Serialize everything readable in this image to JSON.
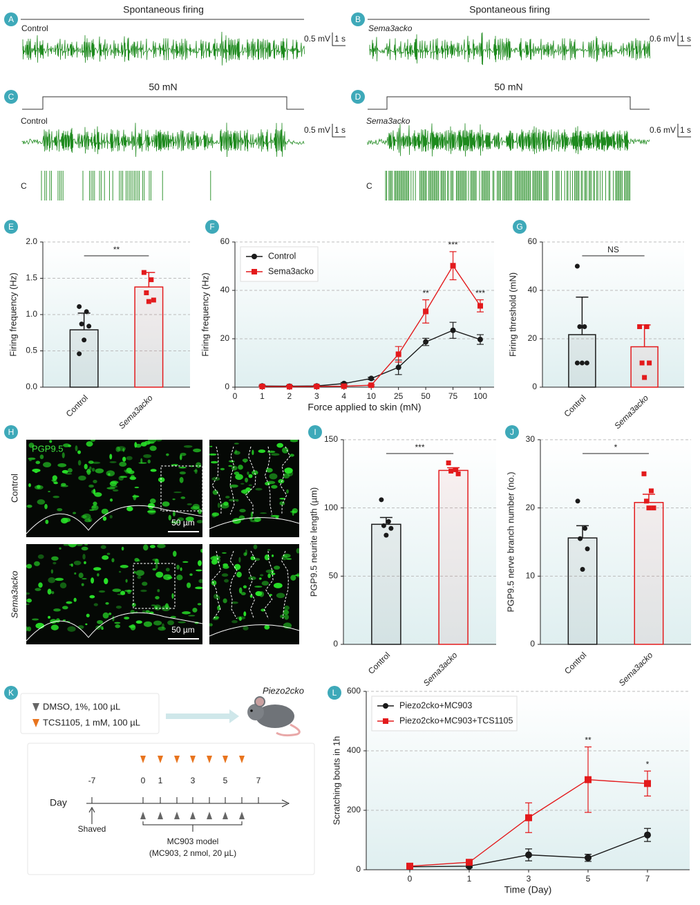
{
  "panel_labels": [
    "A",
    "B",
    "C",
    "D",
    "E",
    "F",
    "G",
    "H",
    "I",
    "J",
    "K",
    "L"
  ],
  "traces": [
    {
      "title": "Spontaneous firing",
      "label": "Control",
      "voltage": "0.5 mV",
      "time": "1 s"
    },
    {
      "title": "Spontaneous firing",
      "label": "Sema3acko",
      "voltage": "0.6 mV",
      "time": "1 s"
    },
    {
      "title": "50 mN",
      "label": "Control",
      "voltage": "0.5 mV",
      "time": "1 s",
      "raster": "C"
    },
    {
      "title": "50 mN",
      "label": "Sema3acko",
      "voltage": "0.6 mV",
      "time": "1 s",
      "raster": "C"
    }
  ],
  "images": {
    "stain": "PGP9.5",
    "rows": [
      "Control",
      "Sema3acko"
    ],
    "scale_bar": "50 µm"
  },
  "schematic": {
    "treatments": [
      "DMSO, 1%, 100 µL",
      "TCS1105, 1 mM, 100 µL"
    ],
    "mouse": "Piezo2cko",
    "axis_label": "Day",
    "days": [
      "-7",
      "0",
      "1",
      "3",
      "5",
      "7"
    ],
    "shaved": "Shaved",
    "model": "MC903 model",
    "model_detail": "(MC903, 2 nmol, 20 µL)"
  },
  "chart_data": [
    {
      "type": "bar",
      "categories": [
        "Control",
        "Sema3acko"
      ],
      "values": [
        0.79,
        1.38
      ],
      "errors": [
        0.23,
        0.2
      ],
      "points": [
        [
          1.11,
          1.04,
          0.87,
          0.84,
          0.65,
          0.46
        ],
        [
          1.58,
          1.48,
          1.3,
          1.2,
          1.18
        ]
      ],
      "colors": [
        "#1a1a1a",
        "#e31a1c"
      ],
      "markers": [
        "circle",
        "square"
      ],
      "ylabel": "Firing frequency (Hz)",
      "ylim": [
        0,
        2
      ],
      "yticks": [
        {
          "value": 0,
          "label": "0.0"
        },
        0.5,
        {
          "value": 1,
          "label": "1.0"
        },
        1.5,
        {
          "value": 2,
          "label": "2.0"
        }
      ],
      "significance": "**",
      "grid": true
    },
    {
      "type": "line",
      "categories": [
        "0",
        "1",
        "2",
        "3",
        "4",
        "10",
        "25",
        "50",
        "75",
        "100"
      ],
      "xlabel": "Force applied to skin (mN)",
      "ylabel": "Firing frequency (Hz)",
      "ylim": [
        0,
        60
      ],
      "yticks": [
        0,
        20,
        40,
        60
      ],
      "grid": true,
      "legend": "upper left",
      "series": [
        {
          "name": "Control",
          "color": "#1a1a1a",
          "marker": "circle",
          "values": [
            null,
            0.5,
            0.4,
            0.5,
            1.5,
            3.6,
            8.2,
            18.7,
            23.5,
            19.7
          ],
          "errors": [
            null,
            0.3,
            0.3,
            0.3,
            0.4,
            0.5,
            3,
            1.5,
            3.3,
            2
          ]
        },
        {
          "name": "Sema3acko",
          "color": "#e31a1c",
          "marker": "square",
          "values": [
            null,
            0.3,
            0.2,
            0.3,
            0.4,
            0.8,
            13.6,
            31.3,
            50.2,
            33.6
          ],
          "errors": [
            null,
            0.2,
            0.2,
            0.2,
            0.2,
            0.3,
            3.2,
            4.8,
            5.8,
            2.5
          ]
        }
      ],
      "annotations": [
        null,
        null,
        null,
        null,
        null,
        null,
        null,
        "**",
        "***",
        "***"
      ]
    },
    {
      "type": "bar",
      "categories": [
        "Control",
        "Sema3acko"
      ],
      "values": [
        21.7,
        16.7
      ],
      "errors": [
        15.5,
        9
      ],
      "points": [
        [
          50,
          25,
          25,
          10,
          10,
          10
        ],
        [
          25,
          25,
          10,
          10,
          4
        ]
      ],
      "colors": [
        "#1a1a1a",
        "#e31a1c"
      ],
      "markers": [
        "circle",
        "square"
      ],
      "ylabel": "Firing threshold (mN)",
      "ylim": [
        0,
        60
      ],
      "yticks": [
        0,
        20,
        40,
        60
      ],
      "significance": "NS",
      "grid": true
    },
    {
      "type": "bar",
      "categories": [
        "Control",
        "Sema3acko"
      ],
      "values": [
        88,
        127.5
      ],
      "errors": [
        5,
        2
      ],
      "points": [
        [
          106,
          90,
          87,
          85,
          80
        ],
        [
          133,
          128,
          127,
          125
        ]
      ],
      "colors": [
        "#1a1a1a",
        "#e31a1c"
      ],
      "markers": [
        "circle",
        "square"
      ],
      "ylabel": "PGP9.5 neurite length (µm)",
      "ylim": [
        0,
        150
      ],
      "yticks": [
        0,
        50,
        100,
        150
      ],
      "significance": "***",
      "grid": true
    },
    {
      "type": "bar",
      "categories": [
        "Control",
        "Sema3acko"
      ],
      "values": [
        15.6,
        20.8
      ],
      "errors": [
        1.8,
        1.2
      ],
      "points": [
        [
          21,
          17,
          15.5,
          14,
          11
        ],
        [
          25,
          22.5,
          21,
          20,
          20
        ]
      ],
      "colors": [
        "#1a1a1a",
        "#e31a1c"
      ],
      "markers": [
        "circle",
        "square"
      ],
      "ylabel": "PGP9.5 nerve branch number (no.)",
      "ylim": [
        0,
        30
      ],
      "yticks": [
        0,
        10,
        20,
        30
      ],
      "significance": "*",
      "grid": true
    },
    {
      "type": "line",
      "categories": [
        "0",
        "1",
        "3",
        "5",
        "7"
      ],
      "xlabel": "Time (Day)",
      "ylabel": "Scratching bouts in 1h",
      "ylim": [
        0,
        600
      ],
      "yticks": [
        0,
        200,
        400,
        600
      ],
      "grid": true,
      "legend": "upper left",
      "series": [
        {
          "name": "Piezo2cko+MC903",
          "color": "#1a1a1a",
          "marker": "circle",
          "values": [
            10,
            12,
            50,
            40,
            117
          ],
          "errors": [
            5,
            5,
            20,
            12,
            22
          ]
        },
        {
          "name": "Piezo2cko+MC903+TCS1105",
          "color": "#e31a1c",
          "marker": "square",
          "values": [
            12,
            25,
            175,
            303,
            290
          ],
          "errors": [
            6,
            6,
            50,
            110,
            42
          ]
        }
      ],
      "annotations": [
        null,
        null,
        null,
        "**",
        "*"
      ]
    }
  ]
}
